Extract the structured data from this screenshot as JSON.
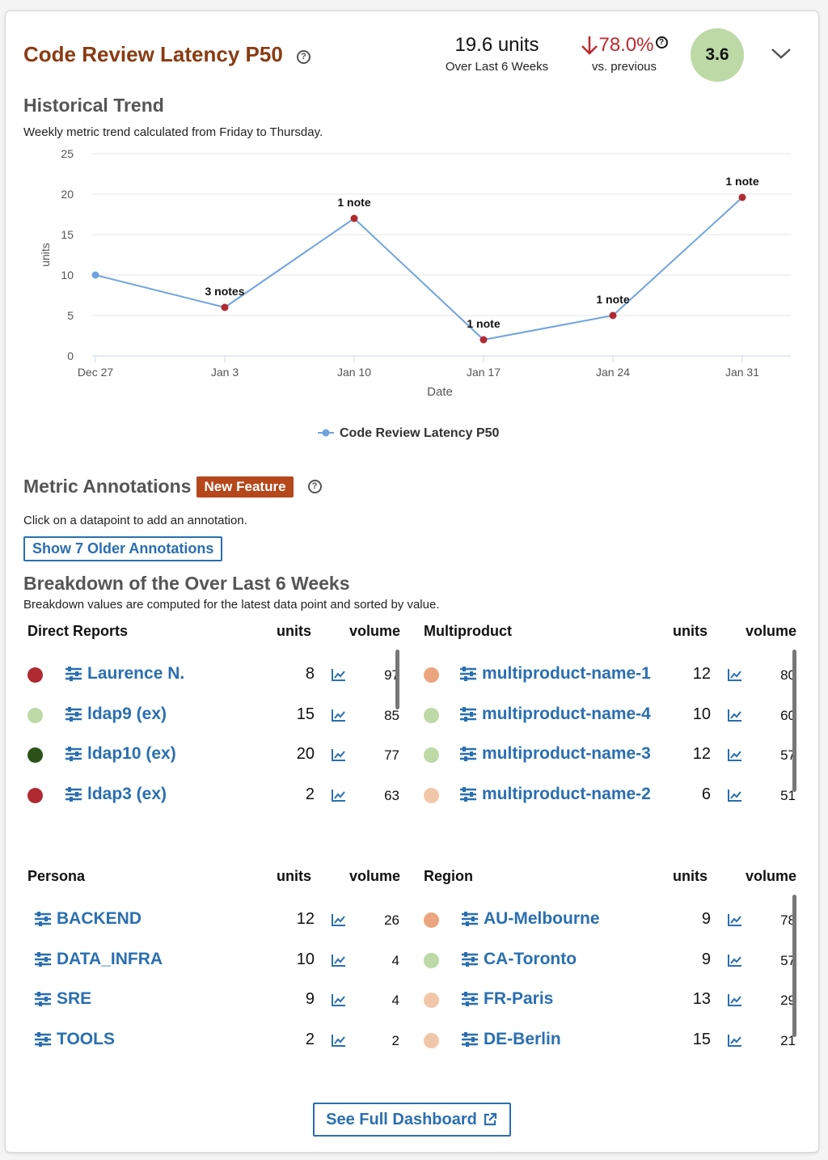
{
  "header": {
    "title": "Code Review Latency P50",
    "summary_value": "19.6 units",
    "summary_period": "Over Last 6 Weeks",
    "delta_value": "78.0%",
    "delta_label": "vs. previous",
    "score": "3.6",
    "colors": {
      "title": "#8a3b12",
      "delta_down": "#c0282f",
      "score_bg": "#bcd9a6"
    }
  },
  "trend": {
    "heading": "Historical Trend",
    "description": "Weekly metric trend calculated from Friday to Thursday."
  },
  "chart_data": {
    "type": "line",
    "x": [
      "Dec 27",
      "Jan 3",
      "Jan 10",
      "Jan 17",
      "Jan 24",
      "Jan 31"
    ],
    "series": [
      {
        "name": "Code Review Latency P50",
        "values": [
          10,
          6,
          17,
          2,
          5,
          19.6
        ],
        "color": "#6fa3e0"
      }
    ],
    "point_notes": [
      "",
      "3 notes",
      "1 note",
      "1 note",
      "1 note",
      "1 note"
    ],
    "annotated_point_color": "#b02a32",
    "xlabel": "Date",
    "ylabel": "units",
    "yticks": [
      "0",
      "5",
      "10",
      "15",
      "20",
      "25"
    ],
    "ylim": [
      0,
      25
    ],
    "grid": true,
    "legend_position": "bottom-center"
  },
  "annotations": {
    "heading": "Metric Annotations",
    "badge": "New Feature",
    "instruction": "Click on a datapoint to add an annotation.",
    "older_button": "Show 7 Older Annotations"
  },
  "breakdown": {
    "heading": "Breakdown of the Over Last 6 Weeks",
    "description": "Breakdown values are computed for the latest data point and sorted by value.",
    "sections": [
      {
        "title": "Direct Reports",
        "units_label": "units",
        "volume_label": "volume",
        "rows": [
          {
            "name": "Laurence N.",
            "units": "8",
            "volume": "97",
            "color": "#b02a32"
          },
          {
            "name": "ldap9 (ex)",
            "units": "15",
            "volume": "85",
            "color": "#bcd9a6"
          },
          {
            "name": "ldap10 (ex)",
            "units": "20",
            "volume": "77",
            "color": "#2d5219"
          },
          {
            "name": "ldap3 (ex)",
            "units": "2",
            "volume": "63",
            "color": "#b02a32"
          }
        ]
      },
      {
        "title": "Multiproduct",
        "units_label": "units",
        "volume_label": "volume",
        "rows": [
          {
            "name": "multiproduct-name-1",
            "units": "12",
            "volume": "80",
            "color": "#eba57e"
          },
          {
            "name": "multiproduct-name-4",
            "units": "10",
            "volume": "60",
            "color": "#bcd9a6"
          },
          {
            "name": "multiproduct-name-3",
            "units": "12",
            "volume": "57",
            "color": "#bcd9a6"
          },
          {
            "name": "multiproduct-name-2",
            "units": "6",
            "volume": "51",
            "color": "#f2c6a8"
          }
        ]
      },
      {
        "title": "Persona",
        "units_label": "units",
        "volume_label": "volume",
        "rows": [
          {
            "name": "BACKEND",
            "units": "12",
            "volume": "26"
          },
          {
            "name": "DATA_INFRA",
            "units": "10",
            "volume": "4"
          },
          {
            "name": "SRE",
            "units": "9",
            "volume": "4"
          },
          {
            "name": "TOOLS",
            "units": "2",
            "volume": "2"
          }
        ]
      },
      {
        "title": "Region",
        "units_label": "units",
        "volume_label": "volume",
        "rows": [
          {
            "name": "AU-Melbourne",
            "units": "9",
            "volume": "78",
            "color": "#eba57e"
          },
          {
            "name": "CA-Toronto",
            "units": "9",
            "volume": "57",
            "color": "#bcd9a6"
          },
          {
            "name": "FR-Paris",
            "units": "13",
            "volume": "29",
            "color": "#f2c6a8"
          },
          {
            "name": "DE-Berlin",
            "units": "15",
            "volume": "21",
            "color": "#f2c6a8"
          }
        ]
      }
    ]
  },
  "footer": {
    "dashboard_button": "See Full Dashboard"
  },
  "icons": [
    "help-icon",
    "arrow-down-icon",
    "chevron-down-icon",
    "filter-sliders-icon",
    "trend-chart-icon",
    "external-link-icon"
  ]
}
